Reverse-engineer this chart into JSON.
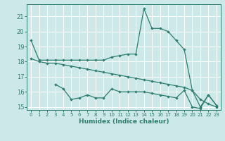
{
  "xlabel": "Humidex (Indice chaleur)",
  "bg_color": "#cce8e8",
  "grid_color": "#ffffff",
  "line_color": "#2e7d6e",
  "xlim": [
    -0.5,
    23.5
  ],
  "ylim": [
    14.8,
    21.8
  ],
  "yticks": [
    15,
    16,
    17,
    18,
    19,
    20,
    21
  ],
  "xticks": [
    0,
    1,
    2,
    3,
    4,
    5,
    6,
    7,
    8,
    9,
    10,
    11,
    12,
    13,
    14,
    15,
    16,
    17,
    18,
    19,
    20,
    21,
    22,
    23
  ],
  "series": [
    {
      "x": [
        0,
        1,
        2,
        3,
        4,
        5,
        6,
        7,
        8,
        9,
        10,
        11,
        12,
        13,
        14,
        15,
        16,
        17,
        18,
        19,
        20,
        21,
        22,
        23
      ],
      "y": [
        19.4,
        18.1,
        18.1,
        18.1,
        18.1,
        18.1,
        18.1,
        18.1,
        18.1,
        18.1,
        18.3,
        18.4,
        18.5,
        18.5,
        21.5,
        20.2,
        20.2,
        20.0,
        19.4,
        18.8,
        16.1,
        15.0,
        15.8,
        15.1
      ]
    },
    {
      "x": [
        0,
        1,
        2,
        3,
        4,
        5,
        6,
        7,
        8,
        9,
        10,
        11,
        12,
        13,
        14,
        15,
        16,
        17,
        18,
        19,
        20,
        21,
        22,
        23
      ],
      "y": [
        18.2,
        18.0,
        17.9,
        17.9,
        17.8,
        17.7,
        17.6,
        17.5,
        17.4,
        17.3,
        17.2,
        17.1,
        17.0,
        16.9,
        16.8,
        16.7,
        16.6,
        16.5,
        16.4,
        16.3,
        16.1,
        15.5,
        15.2,
        15.0
      ]
    },
    {
      "x": [
        3,
        4,
        5,
        6,
        7,
        8,
        9,
        10,
        11,
        12,
        13,
        14,
        15,
        16,
        17,
        18,
        19,
        20,
        21,
        22,
        23
      ],
      "y": [
        16.5,
        16.2,
        15.5,
        15.6,
        15.8,
        15.6,
        15.6,
        16.2,
        16.0,
        16.0,
        16.0,
        16.0,
        15.9,
        15.8,
        15.7,
        15.6,
        16.1,
        15.0,
        14.9,
        15.8,
        15.1
      ]
    }
  ]
}
